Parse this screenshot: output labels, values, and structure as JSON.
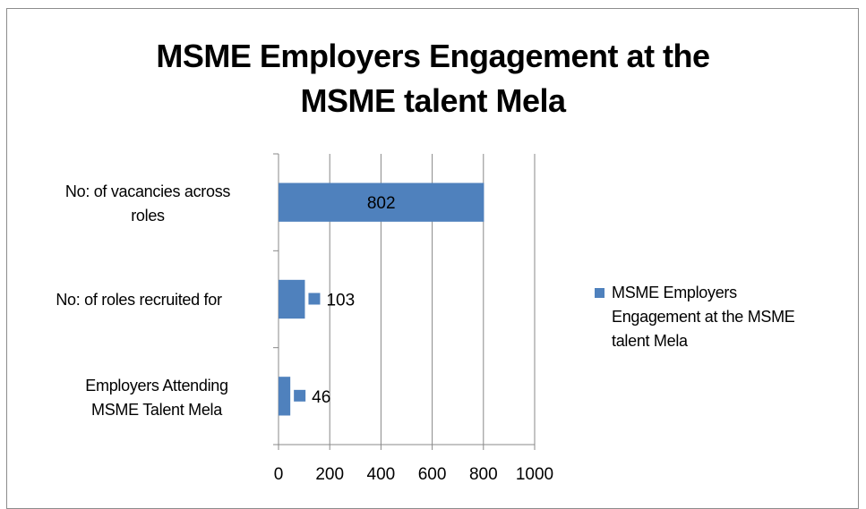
{
  "chart_data": {
    "type": "bar",
    "orientation": "horizontal",
    "title": "MSME Employers Engagement at the MSME talent Mela",
    "title_lines": [
      "MSME Employers Engagement at the",
      "MSME talent Mela"
    ],
    "categories": [
      "No: of vacancies across roles",
      "No: of roles recruited for",
      "Employers Attending MSME Talent Mela"
    ],
    "category_lines": [
      [
        "No: of vacancies across",
        "roles"
      ],
      [
        "No: of roles recruited for"
      ],
      [
        "Employers Attending",
        "MSME Talent Mela"
      ]
    ],
    "series": [
      {
        "name": "MSME Employers Engagement at the MSME talent Mela",
        "values": [
          802,
          103,
          46
        ],
        "color": "#4f81bd"
      }
    ],
    "data_labels": [
      "802",
      "103",
      "46"
    ],
    "xlim": [
      0,
      1000
    ],
    "x_ticks": [
      "0",
      "200",
      "400",
      "600",
      "800",
      "1000"
    ],
    "x_tick_values": [
      0,
      200,
      400,
      600,
      800,
      1000
    ],
    "grid": true,
    "legend_position": "right",
    "legend_lines": [
      "MSME Employers",
      "Engagement at the MSME",
      "talent Mela"
    ]
  }
}
